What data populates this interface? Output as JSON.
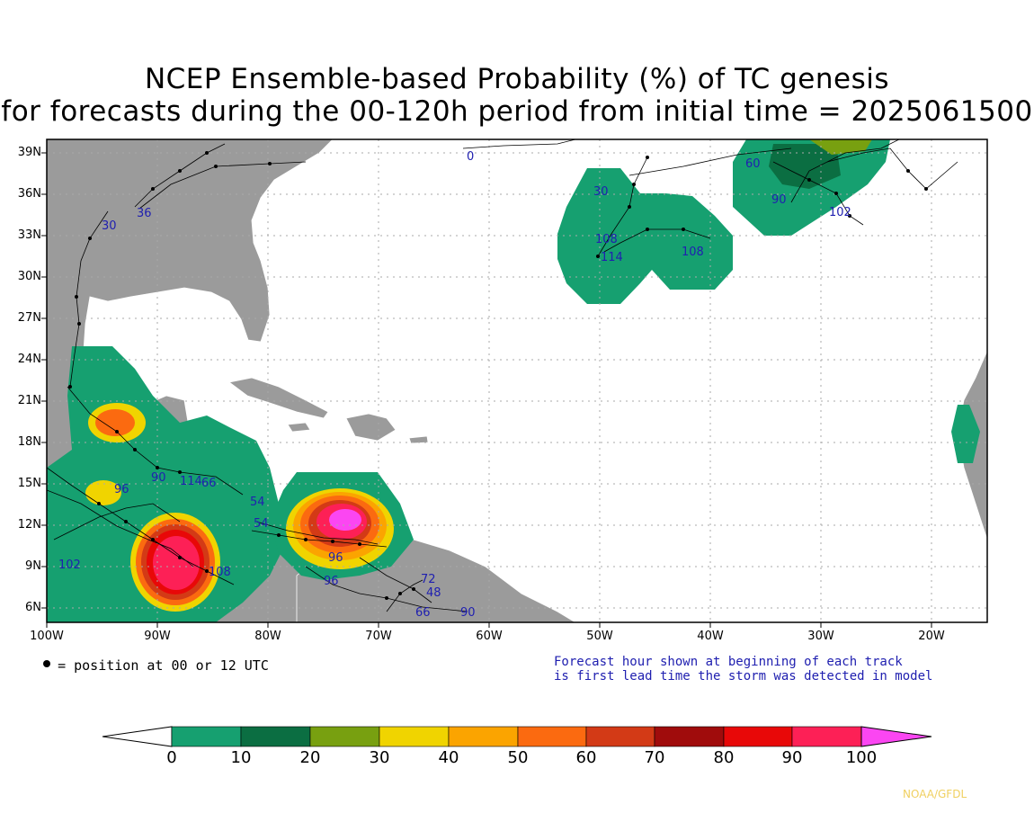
{
  "title_line1": "NCEP Ensemble-based Probability (%) of TC genesis",
  "title_line2": "for forecasts during the 00-120h period from initial time = 2025061500",
  "lat_labels": [
    "39N",
    "36N",
    "33N",
    "30N",
    "27N",
    "24N",
    "21N",
    "18N",
    "15N",
    "12N",
    "9N",
    "6N"
  ],
  "lon_labels": [
    "100W",
    "90W",
    "80W",
    "70W",
    "60W",
    "50W",
    "40W",
    "30W",
    "20W"
  ],
  "legend_dot_text": "= position at 00 or 12 UTC",
  "note_line1": "Forecast hour shown at beginning of each track",
  "note_line2": "is first lead time the storm was detected in model",
  "colorbar": {
    "labels": [
      "0",
      "10",
      "20",
      "30",
      "40",
      "50",
      "60",
      "70",
      "80",
      "90",
      "100"
    ],
    "colors": [
      "#16a070",
      "#0b6e42",
      "#78a010",
      "#f0d400",
      "#fba400",
      "#fb6a10",
      "#d33a16",
      "#a00c0c",
      "#e80808",
      "#fd2056",
      "#fb46f2"
    ]
  },
  "forecast_hour_labels": [
    "0",
    "30",
    "36",
    "30",
    "60",
    "90",
    "102",
    "108",
    "108",
    "114",
    "54",
    "54",
    "90",
    "96",
    "96",
    "96",
    "102",
    "108",
    "72",
    "66",
    "90",
    "48",
    "114",
    "66"
  ],
  "credit": "NOAA/GFDL",
  "map_colors": {
    "land": "#9b9b9b",
    "ocean": "#ffffff",
    "grid": "#aaaaaa",
    "track": "#000000",
    "hour_label": "#2020b0"
  }
}
